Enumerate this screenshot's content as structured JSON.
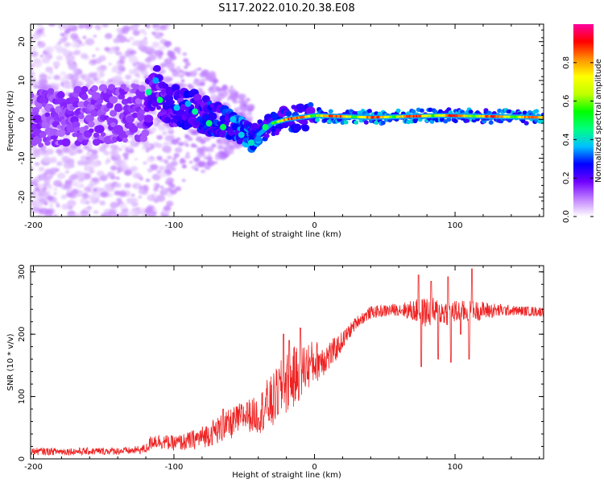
{
  "title": "S117.2022.010.20.38.E08",
  "chart_data": [
    {
      "type": "heatmap",
      "xlabel": "Height of straight line (km)",
      "ylabel": "Frequency (Hz)",
      "xlim": [
        -202,
        163
      ],
      "ylim": [
        -25,
        24.5
      ],
      "xticks": [
        -200,
        -100,
        0,
        100
      ],
      "yticks": [
        -20,
        -10,
        0,
        10,
        20
      ],
      "colorbar": {
        "label": "Normalized spectral amplitude",
        "range": [
          0,
          1
        ],
        "ticks": [
          "0.0",
          "0.2",
          "0.4",
          "0.6",
          "0.8"
        ],
        "colors": [
          "#ffffff",
          "#c080ff",
          "#7000ff",
          "#0000ff",
          "#00c0ff",
          "#00ff80",
          "#00ff00",
          "#c0ff00",
          "#ffff00",
          "#ff9000",
          "#ff0000",
          "#ff00a0"
        ]
      },
      "ridge": {
        "description_points": [
          {
            "x": -200,
            "f": 0
          },
          {
            "x": -120,
            "f": 2
          },
          {
            "x": -115,
            "f": 9
          },
          {
            "x": -105,
            "f": 4
          },
          {
            "x": -90,
            "f": 3
          },
          {
            "x": -70,
            "f": 0
          },
          {
            "x": -55,
            "f": -2
          },
          {
            "x": -45,
            "f": -5
          },
          {
            "x": -40,
            "f": -4
          },
          {
            "x": -30,
            "f": -1
          },
          {
            "x": -20,
            "f": 0
          },
          {
            "x": 0,
            "f": 1
          },
          {
            "x": 40,
            "f": 0.5
          },
          {
            "x": 90,
            "f": 1
          },
          {
            "x": 163,
            "f": 0.5
          }
        ]
      }
    },
    {
      "type": "line",
      "xlabel": "Height of straight line (km)",
      "ylabel": "SNR (10 * v/v)",
      "xlim": [
        -202,
        163
      ],
      "ylim": [
        0,
        310
      ],
      "xticks": [
        -200,
        -100,
        0,
        100
      ],
      "yticks": [
        0,
        100,
        200,
        300
      ],
      "series": [
        {
          "color": "#ee2222",
          "x": [
            -202,
            -180,
            -160,
            -130,
            -120,
            -115,
            -110,
            -100,
            -90,
            -80,
            -70,
            -60,
            -50,
            -40,
            -35,
            -30,
            -25,
            -20,
            -15,
            -10,
            -5,
            0,
            5,
            10,
            15,
            20,
            25,
            30,
            40,
            60,
            80,
            100,
            120,
            140,
            163
          ],
          "values": [
            12,
            12,
            12,
            13,
            16,
            30,
            28,
            25,
            28,
            35,
            45,
            55,
            70,
            70,
            85,
            90,
            110,
            120,
            130,
            140,
            150,
            155,
            160,
            165,
            175,
            190,
            205,
            220,
            235,
            240,
            235,
            235,
            238,
            238,
            236
          ],
          "noise": [
            6,
            6,
            6,
            6,
            8,
            14,
            12,
            12,
            15,
            18,
            22,
            25,
            25,
            30,
            40,
            45,
            45,
            50,
            50,
            45,
            40,
            35,
            30,
            25,
            20,
            15,
            12,
            10,
            10,
            10,
            25,
            20,
            15,
            8,
            8
          ]
        }
      ],
      "spikes": [
        {
          "x": 74,
          "value": 295
        },
        {
          "x": 76,
          "value": 148
        },
        {
          "x": 83,
          "value": 285
        },
        {
          "x": 88,
          "value": 160
        },
        {
          "x": 95,
          "value": 292
        },
        {
          "x": 97,
          "value": 155
        },
        {
          "x": 104,
          "value": 200
        },
        {
          "x": 110,
          "value": 160
        },
        {
          "x": 112,
          "value": 305
        },
        {
          "x": -22,
          "value": 200
        },
        {
          "x": -18,
          "value": 190
        },
        {
          "x": -10,
          "value": 210
        },
        {
          "x": -65,
          "value": 80
        },
        {
          "x": -48,
          "value": 90
        }
      ]
    }
  ]
}
